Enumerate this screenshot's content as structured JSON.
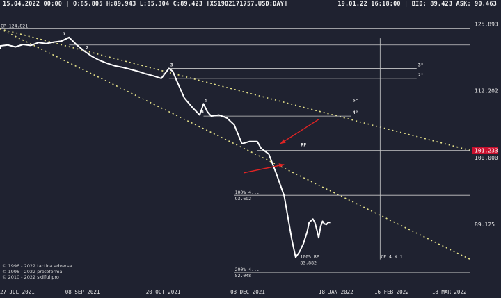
{
  "header": {
    "left": "15.04.2022 00:00 | O:85.805 H:89.943 L:85.304 C:89.423 [XS1902171757.USD:DAY]",
    "right": "19.01.22  16:18:00 | BID: 89.423 ASK: 90.463"
  },
  "copyright": [
    "© 1996 - 2022 tactica adversa",
    "© 1996 - 2022 protoforma",
    "© 2010 - 2022 skilful pro"
  ],
  "colors": {
    "background": "#1f2230",
    "price": "#ffffff",
    "channel": "#e6e28a",
    "level": "#c9c9c9",
    "arrow": "#e02424",
    "current_price_bg": "#c8102e"
  },
  "chart_data": {
    "type": "line",
    "title": "XS1902171757.USD:DAY",
    "x_ticks": [
      "27 JUL 2021",
      "08 SEP 2021",
      "20 OCT 2021",
      "03 DEC 2021",
      "18 JAN 2022",
      "16 FEB 2022",
      "18 MAR 2022"
    ],
    "y_ticks": [
      125.893,
      112.202,
      100.0,
      89.125
    ],
    "ylim": [
      80.5,
      129.0
    ],
    "log_scale": true,
    "current_price": 101.233,
    "series": [
      {
        "x": [
          "2021-07-27",
          "2021-07-31",
          "2021-08-04",
          "2021-08-08",
          "2021-08-12",
          "2021-08-16",
          "2021-08-20",
          "2021-08-24",
          "2021-08-28",
          "2021-09-01",
          "2021-09-05",
          "2021-09-09",
          "2021-09-13",
          "2021-09-17",
          "2021-09-21",
          "2021-09-25",
          "2021-09-29",
          "2021-10-03",
          "2021-10-07",
          "2021-10-11",
          "2021-10-15",
          "2021-10-19",
          "2021-10-23",
          "2021-10-25",
          "2021-10-27",
          "2021-10-31",
          "2021-11-04",
          "2021-11-08",
          "2021-11-10",
          "2021-11-12",
          "2021-11-14",
          "2021-11-18",
          "2021-11-22",
          "2021-11-26",
          "2021-11-30",
          "2021-12-04",
          "2021-12-08",
          "2021-12-10",
          "2021-12-14",
          "2021-12-18",
          "2021-12-22",
          "2021-12-26",
          "2021-12-28",
          "2021-12-30",
          "2022-01-01",
          "2022-01-03",
          "2022-01-04",
          "2022-01-06",
          "2022-01-07",
          "2022-01-08",
          "2022-01-09",
          "2022-01-10",
          "2022-01-11",
          "2022-01-12",
          "2022-01-13",
          "2022-01-14",
          "2022-01-15"
        ],
        "y": [
          121.2,
          121.4,
          121.0,
          121.5,
          121.3,
          121.9,
          121.7,
          122.0,
          122.2,
          123.0,
          121.4,
          120.1,
          119.0,
          118.2,
          117.6,
          117.1,
          116.8,
          116.4,
          116.0,
          115.5,
          115.1,
          114.6,
          116.6,
          116.0,
          114.2,
          110.8,
          109.1,
          107.6,
          109.7,
          108.2,
          107.4,
          107.6,
          107.1,
          105.8,
          102.4,
          102.8,
          102.8,
          101.6,
          100.6,
          97.2,
          93.6,
          86.8,
          84.2,
          85.0,
          86.2,
          88.0,
          89.4,
          89.943,
          89.4,
          88.3,
          87.1,
          88.8,
          89.6,
          89.2,
          89.1,
          89.423,
          89.423
        ]
      }
    ],
    "channel": {
      "upper": {
        "x": [
          "2021-07-27",
          "2022-03-29"
        ],
        "y": [
          124.821,
          101.233
        ]
      },
      "lower": {
        "x": [
          "2021-07-27",
          "2022-03-29"
        ],
        "y": [
          124.821,
          83.882
        ]
      }
    },
    "levels": [
      {
        "label": "1",
        "price": 121.4,
        "x_start": "2021-09-01",
        "x_end": "2022-03-29"
      },
      {
        "label": "3°",
        "price": 116.6,
        "x_start": "2021-10-23",
        "x_end": "2022-03-01"
      },
      {
        "label": "2°",
        "price": 114.6,
        "x_start": "2021-10-23",
        "x_end": "2022-03-01"
      },
      {
        "label": "5°",
        "price": 109.7,
        "x_start": "2021-11-10",
        "x_end": "2022-01-26"
      },
      {
        "label": "4°",
        "price": 107.4,
        "x_start": "2021-11-10",
        "x_end": "2022-01-26"
      },
      {
        "label": "",
        "price": 124.821,
        "x_start": "2021-07-27",
        "x_end": "2022-03-29"
      },
      {
        "label": "",
        "price": 101.233,
        "x_start": "2021-12-08",
        "x_end": "2022-03-29"
      },
      {
        "label": "100%",
        "price": 93.692,
        "x_start": "2021-11-26",
        "x_end": "2022-03-29"
      },
      {
        "label": "200%",
        "price": 82.048,
        "x_start": "2021-11-26",
        "x_end": "2022-03-29"
      }
    ],
    "level_labels": [
      {
        "text": "CP 124.821",
        "x": "2021-07-27",
        "y": 124.821
      },
      {
        "text": "100%  4...",
        "x": "2021-11-26",
        "y": 93.692
      },
      {
        "text": "93.692",
        "x": "2021-11-26",
        "y": 93.692
      },
      {
        "text": "100% RP",
        "x": "2021-12-30",
        "y": 83.882
      },
      {
        "text": "83.882",
        "x": "2021-12-30",
        "y": 83.882
      },
      {
        "text": "200%  4...",
        "x": "2021-11-26",
        "y": 82.048
      },
      {
        "text": "82.048",
        "x": "2021-11-26",
        "y": 82.048
      },
      {
        "text": "CP 4 X 1",
        "x": "2022-02-10",
        "y": 83.882
      }
    ],
    "wave_labels": [
      {
        "text": "1",
        "x": "2021-08-28",
        "y": 123.0
      },
      {
        "text": "2",
        "x": "2021-09-09",
        "y": 120.1
      },
      {
        "text": "3",
        "x": "2021-10-23",
        "y": 116.6
      },
      {
        "text": "2",
        "x": "2021-10-19",
        "y": 114.6
      },
      {
        "text": "5",
        "x": "2021-11-10",
        "y": 109.7
      },
      {
        "text": "4",
        "x": "2021-11-08",
        "y": 107.6
      },
      {
        "text": "3°",
        "x": "2022-03-01",
        "y": 116.6
      },
      {
        "text": "2°",
        "x": "2022-03-01",
        "y": 114.6
      },
      {
        "text": "5°",
        "x": "2022-01-26",
        "y": 109.7
      },
      {
        "text": "4°",
        "x": "2022-01-26",
        "y": 107.4
      },
      {
        "text": "RP",
        "x": "2021-12-30",
        "y": 101.6
      }
    ],
    "vertical_line": {
      "x": "2022-02-10"
    },
    "arrows": [
      {
        "from": {
          "x": "2022-01-09",
          "y": 106.8
        },
        "to": {
          "x": "2021-12-20",
          "y": 102.4
        }
      },
      {
        "from": {
          "x": "2021-12-01",
          "y": 97.4
        },
        "to": {
          "x": "2021-12-22",
          "y": 98.8
        }
      }
    ]
  }
}
